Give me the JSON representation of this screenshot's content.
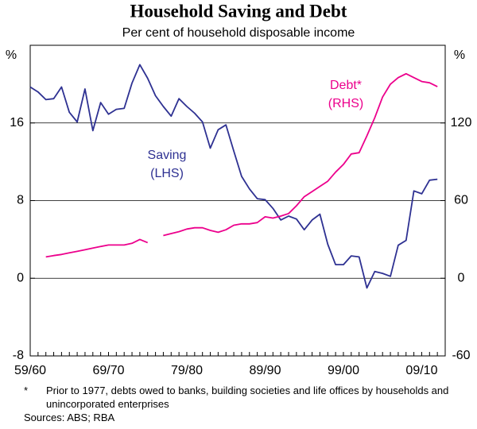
{
  "chart_data": {
    "type": "line",
    "title": "Household Saving and Debt",
    "subtitle": "Per cent of household disposable income",
    "ylabel": "%",
    "y2label": "%",
    "categories": [
      "59/60",
      null,
      null,
      null,
      null,
      null,
      null,
      null,
      null,
      null,
      "69/70",
      null,
      null,
      null,
      null,
      null,
      null,
      null,
      null,
      null,
      "79/80",
      null,
      null,
      null,
      null,
      null,
      null,
      null,
      null,
      null,
      "89/90",
      null,
      null,
      null,
      null,
      null,
      null,
      null,
      null,
      null,
      "99/00",
      null,
      null,
      null,
      null,
      null,
      null,
      null,
      null,
      null,
      "09/10",
      null,
      null
    ],
    "ylim": [
      -8,
      24
    ],
    "yticks": [
      -8,
      0,
      8,
      16
    ],
    "y2lim": [
      -60,
      180
    ],
    "y2ticks": [
      -60,
      0,
      60,
      120
    ],
    "grid": true,
    "series": [
      {
        "name": "Saving",
        "label": "(LHS)",
        "color": "#2e3192",
        "values": [
          19.7,
          19.2,
          18.4,
          18.5,
          19.7,
          17.1,
          16.1,
          19.5,
          15.2,
          18.1,
          16.9,
          17.4,
          17.5,
          20.1,
          22.0,
          20.6,
          18.8,
          17.7,
          16.7,
          18.5,
          17.7,
          17.0,
          16.1,
          13.4,
          15.3,
          15.8,
          13.1,
          10.5,
          9.2,
          8.2,
          8.1,
          7.2,
          6.0,
          6.4,
          6.1,
          5.0,
          6.0,
          6.6,
          3.5,
          1.4,
          1.4,
          2.3,
          2.2,
          -1.0,
          0.7,
          0.5,
          0.2,
          3.4,
          3.9,
          9.0,
          8.7,
          10.1,
          10.2
        ]
      },
      {
        "name": "Debt*",
        "label": "(RHS)",
        "color": "#ec008c",
        "axis": "y2",
        "values": [
          null,
          null,
          16.5,
          17.5,
          18.4,
          19.6,
          20.8,
          22,
          23.3,
          24.5,
          25.7,
          25.7,
          25.7,
          27,
          30,
          27.5,
          null,
          33,
          34.5,
          36,
          38,
          39,
          39,
          37,
          35.5,
          37.5,
          41,
          42,
          42,
          43,
          47.5,
          46.5,
          48,
          50,
          56,
          63,
          67,
          71,
          75,
          82,
          88,
          96,
          97,
          110,
          124,
          140,
          150,
          155,
          158,
          155,
          152,
          151,
          148
        ]
      }
    ],
    "footnote_mark": "*",
    "footnote": "Prior to 1977, debts owed to banks, building societies and life offices by households and unincorporated enterprises",
    "sources": "Sources: ABS; RBA"
  }
}
